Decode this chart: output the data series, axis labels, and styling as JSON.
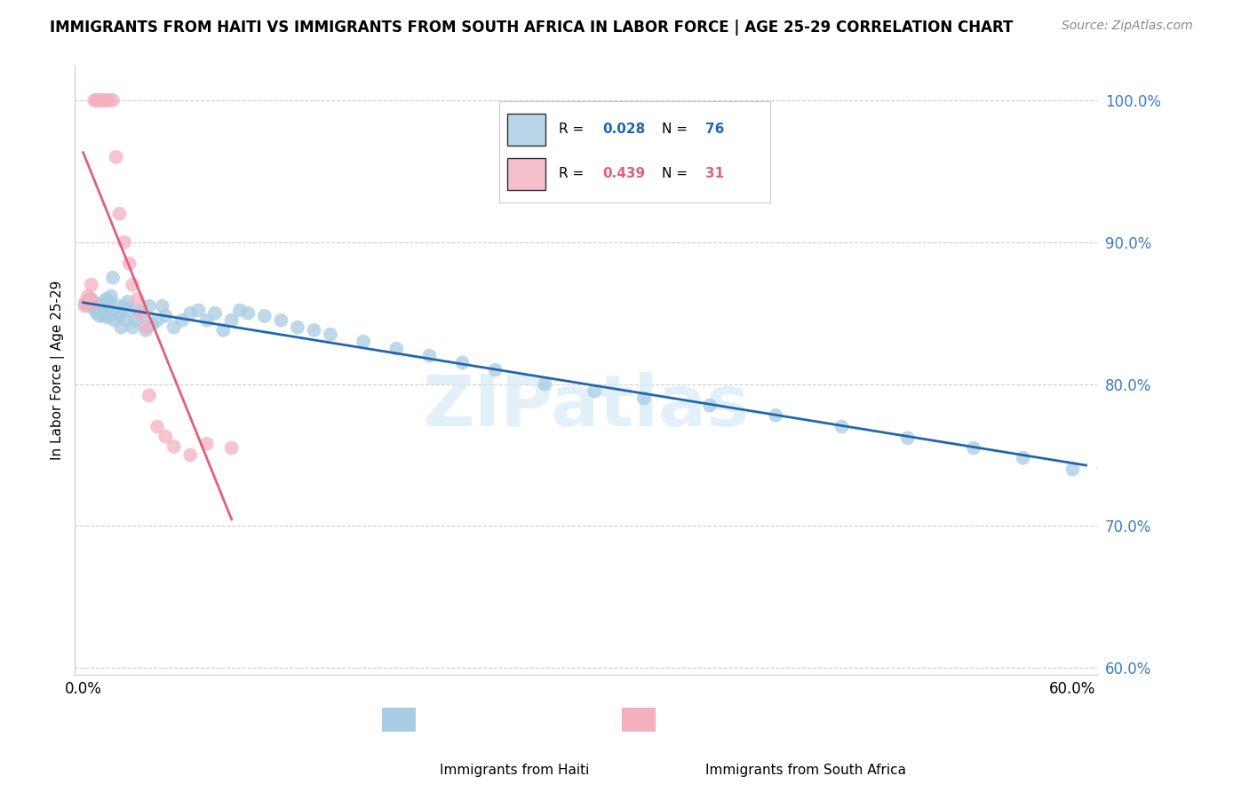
{
  "title": "IMMIGRANTS FROM HAITI VS IMMIGRANTS FROM SOUTH AFRICA IN LABOR FORCE | AGE 25-29 CORRELATION CHART",
  "source": "Source: ZipAtlas.com",
  "ylabel": "In Labor Force | Age 25-29",
  "R_haiti": 0.028,
  "N_haiti": 76,
  "R_sa": 0.439,
  "N_sa": 31,
  "haiti_color": "#a8cce4",
  "sa_color": "#f4b0c0",
  "haiti_line_color": "#2166ac",
  "sa_line_color": "#e0607a",
  "xlim": [
    -0.005,
    0.615
  ],
  "ylim": [
    0.595,
    1.025
  ],
  "yticks": [
    0.6,
    0.7,
    0.8,
    0.9,
    1.0
  ],
  "ytick_labels": [
    "60.0%",
    "70.0%",
    "80.0%",
    "90.0%",
    "100.0%"
  ],
  "xticks": [
    0.0,
    0.1,
    0.2,
    0.3,
    0.4,
    0.5,
    0.6
  ],
  "xtick_labels": [
    "0.0%",
    "",
    "",
    "",
    "",
    "",
    "60.0%"
  ],
  "haiti_x": [
    0.001,
    0.002,
    0.003,
    0.004,
    0.005,
    0.005,
    0.006,
    0.006,
    0.007,
    0.007,
    0.008,
    0.008,
    0.009,
    0.009,
    0.01,
    0.01,
    0.011,
    0.011,
    0.012,
    0.013,
    0.013,
    0.014,
    0.015,
    0.015,
    0.016,
    0.017,
    0.018,
    0.019,
    0.02,
    0.021,
    0.022,
    0.023,
    0.025,
    0.026,
    0.027,
    0.028,
    0.03,
    0.032,
    0.034,
    0.036,
    0.038,
    0.04,
    0.042,
    0.045,
    0.048,
    0.05,
    0.055,
    0.06,
    0.065,
    0.07,
    0.075,
    0.08,
    0.085,
    0.09,
    0.095,
    0.1,
    0.11,
    0.12,
    0.13,
    0.14,
    0.15,
    0.17,
    0.19,
    0.21,
    0.23,
    0.25,
    0.28,
    0.31,
    0.34,
    0.38,
    0.42,
    0.46,
    0.5,
    0.54,
    0.57,
    0.6
  ],
  "haiti_y": [
    0.857,
    0.856,
    0.858,
    0.855,
    0.857,
    0.86,
    0.855,
    0.858,
    0.853,
    0.857,
    0.85,
    0.855,
    0.852,
    0.856,
    0.848,
    0.852,
    0.85,
    0.855,
    0.852,
    0.848,
    0.858,
    0.86,
    0.847,
    0.855,
    0.858,
    0.862,
    0.875,
    0.845,
    0.85,
    0.855,
    0.848,
    0.84,
    0.855,
    0.845,
    0.858,
    0.852,
    0.84,
    0.845,
    0.852,
    0.848,
    0.838,
    0.855,
    0.842,
    0.845,
    0.855,
    0.848,
    0.84,
    0.845,
    0.85,
    0.852,
    0.845,
    0.85,
    0.838,
    0.845,
    0.852,
    0.85,
    0.848,
    0.845,
    0.84,
    0.838,
    0.835,
    0.83,
    0.825,
    0.82,
    0.815,
    0.81,
    0.8,
    0.795,
    0.79,
    0.785,
    0.778,
    0.77,
    0.762,
    0.755,
    0.748,
    0.74
  ],
  "sa_x": [
    0.001,
    0.002,
    0.003,
    0.004,
    0.005,
    0.006,
    0.007,
    0.008,
    0.009,
    0.01,
    0.011,
    0.012,
    0.013,
    0.014,
    0.016,
    0.018,
    0.02,
    0.022,
    0.025,
    0.028,
    0.03,
    0.033,
    0.035,
    0.038,
    0.04,
    0.045,
    0.05,
    0.055,
    0.065,
    0.075,
    0.09
  ],
  "sa_y": [
    0.855,
    0.858,
    0.862,
    0.86,
    0.87,
    0.857,
    1.0,
    1.0,
    1.0,
    1.0,
    1.0,
    1.0,
    1.0,
    1.0,
    1.0,
    1.0,
    0.96,
    0.92,
    0.9,
    0.885,
    0.87,
    0.86,
    0.85,
    0.84,
    0.792,
    0.77,
    0.763,
    0.756,
    0.75,
    0.758,
    0.755
  ],
  "watermark": "ZIPatlas"
}
